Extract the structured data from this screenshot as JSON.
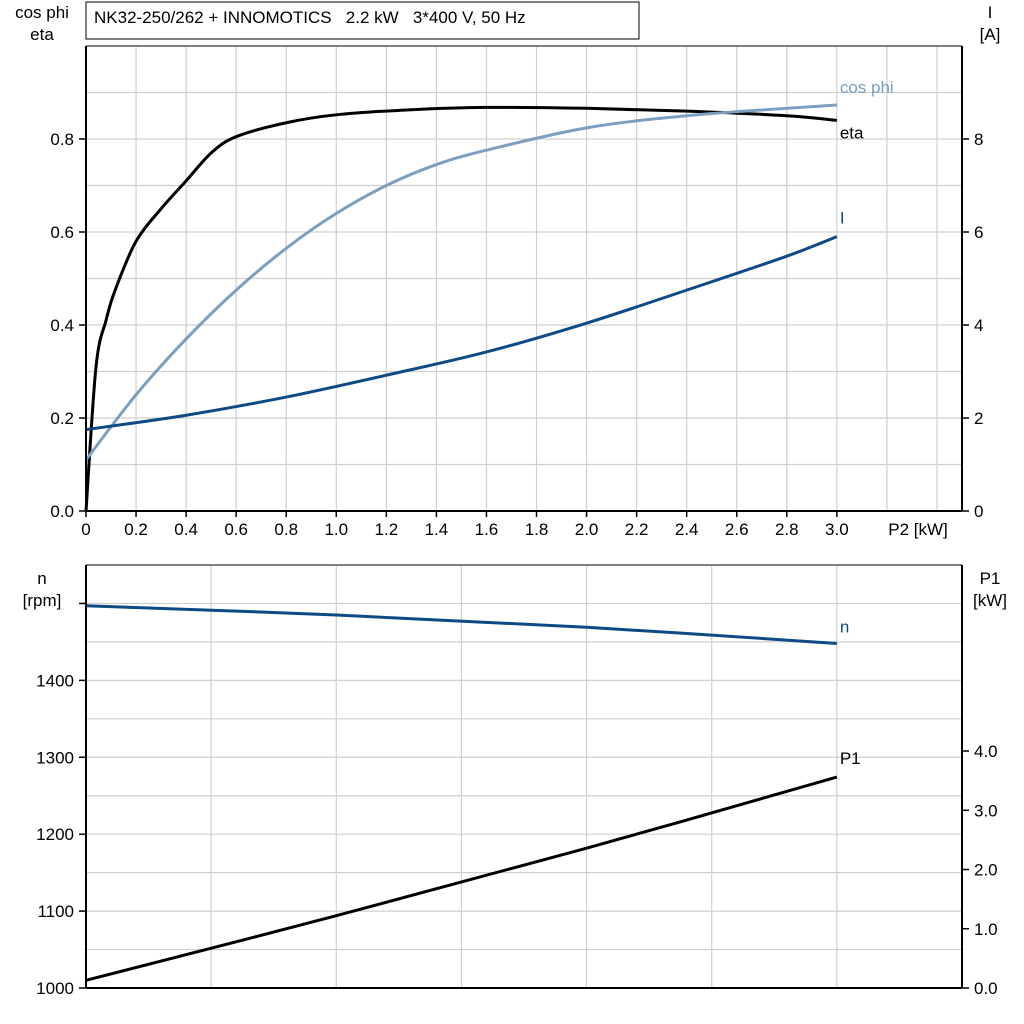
{
  "chart_data": [
    {
      "type": "line",
      "title": "NK32-250/262 + INNOMOTICS   2.2 kW   3*400 V, 50 Hz",
      "xlabel": "P2 [kW]",
      "ylabel_left": [
        "cos phi",
        "eta"
      ],
      "ylabel_right": [
        "I",
        "[A]"
      ],
      "xlim": [
        0,
        3.5
      ],
      "ylim_left": [
        0,
        1.0
      ],
      "ylim_right": [
        0,
        10
      ],
      "x_ticks": [
        "0",
        "0.2",
        "0.4",
        "0.6",
        "0.8",
        "1.0",
        "1.2",
        "1.4",
        "1.6",
        "1.8",
        "2.0",
        "2.2",
        "2.4",
        "2.6",
        "2.8",
        "3.0"
      ],
      "y_ticks_left": [
        "0.0",
        "0.2",
        "0.4",
        "0.6",
        "0.8"
      ],
      "y_ticks_right": [
        "0",
        "2",
        "4",
        "6",
        "8"
      ],
      "grid": true,
      "series": [
        {
          "name": "eta",
          "axis": "left",
          "color": "#000000",
          "x": [
            0,
            0.04,
            0.08,
            0.12,
            0.2,
            0.3,
            0.4,
            0.5,
            0.6,
            0.8,
            1.0,
            1.3,
            1.6,
            2.0,
            2.4,
            2.8,
            3.0
          ],
          "y": [
            0,
            0.31,
            0.41,
            0.48,
            0.58,
            0.65,
            0.71,
            0.77,
            0.805,
            0.835,
            0.852,
            0.863,
            0.868,
            0.866,
            0.86,
            0.85,
            0.84
          ]
        },
        {
          "name": "cos phi",
          "axis": "left",
          "color": "#7b9fc0",
          "x": [
            0,
            0.2,
            0.4,
            0.6,
            0.8,
            1.0,
            1.2,
            1.4,
            1.6,
            2.0,
            2.4,
            2.8,
            3.0
          ],
          "y": [
            0.11,
            0.25,
            0.37,
            0.475,
            0.565,
            0.64,
            0.7,
            0.745,
            0.776,
            0.824,
            0.85,
            0.866,
            0.873
          ]
        },
        {
          "name": "I",
          "axis": "right",
          "color": "#0e4a85",
          "x": [
            0,
            0.4,
            0.8,
            1.2,
            1.6,
            2.0,
            2.4,
            2.8,
            3.0
          ],
          "y": [
            1.75,
            2.06,
            2.45,
            2.92,
            3.42,
            4.04,
            4.75,
            5.48,
            5.9
          ]
        }
      ]
    },
    {
      "type": "line",
      "ylabel_left": [
        "n",
        "[rpm]"
      ],
      "ylabel_right": [
        "P1",
        "[kW]"
      ],
      "xlim": [
        0,
        3.5
      ],
      "ylim_left": [
        1000,
        1550
      ],
      "ylim_right": [
        0,
        7.14
      ],
      "y_ticks_left": [
        "1000",
        "1100",
        "1200",
        "1300",
        "1400"
      ],
      "y_ticks_right": [
        "0.0",
        "1.0",
        "2.0",
        "3.0",
        "4.0"
      ],
      "grid": true,
      "series": [
        {
          "name": "n",
          "axis": "left",
          "color": "#0e4a85",
          "x": [
            0,
            1.0,
            2.0,
            3.0
          ],
          "y": [
            1497,
            1485,
            1469,
            1448
          ]
        },
        {
          "name": "P1",
          "axis": "right",
          "color": "#000000",
          "x": [
            0,
            1.0,
            2.0,
            3.0
          ],
          "y": [
            0.13,
            1.22,
            2.36,
            3.56
          ]
        }
      ]
    }
  ]
}
